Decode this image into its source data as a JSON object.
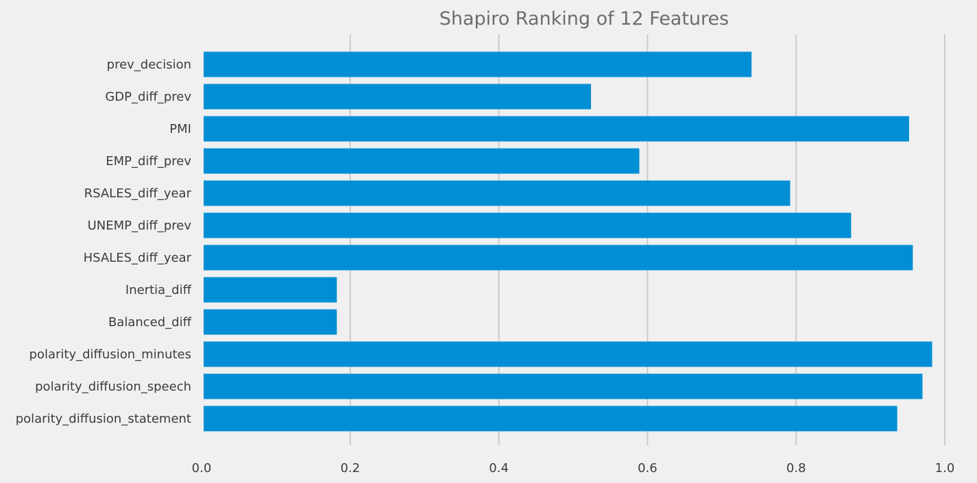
{
  "colors": {
    "background": "#f0f0f0",
    "bar": "#008fd5",
    "grid": "#cbcbcb",
    "title_text": "#6d6d6d",
    "tick_text": "#3c3c3c"
  },
  "chart_data": {
    "type": "bar",
    "orientation": "horizontal",
    "title": "Shapiro Ranking of 12 Features",
    "xlabel": "",
    "ylabel": "",
    "xlim": [
      0.0,
      1.0
    ],
    "xticks": [
      0.0,
      0.2,
      0.4,
      0.6,
      0.8,
      1.0
    ],
    "xtick_labels": [
      "0.0",
      "0.2",
      "0.4",
      "0.6",
      "0.8",
      "1.0"
    ],
    "grid": "vertical",
    "legend": "none",
    "categories": [
      "prev_decision",
      "GDP_diff_prev",
      "PMI",
      "EMP_diff_prev",
      "RSALES_diff_year",
      "UNEMP_diff_prev",
      "HSALES_diff_year",
      "Inertia_diff",
      "Balanced_diff",
      "polarity_diffusion_minutes",
      "polarity_diffusion_speech",
      "polarity_diffusion_statement"
    ],
    "values": [
      0.74,
      0.524,
      0.952,
      0.589,
      0.792,
      0.874,
      0.957,
      0.182,
      0.182,
      0.983,
      0.97,
      0.936
    ]
  }
}
